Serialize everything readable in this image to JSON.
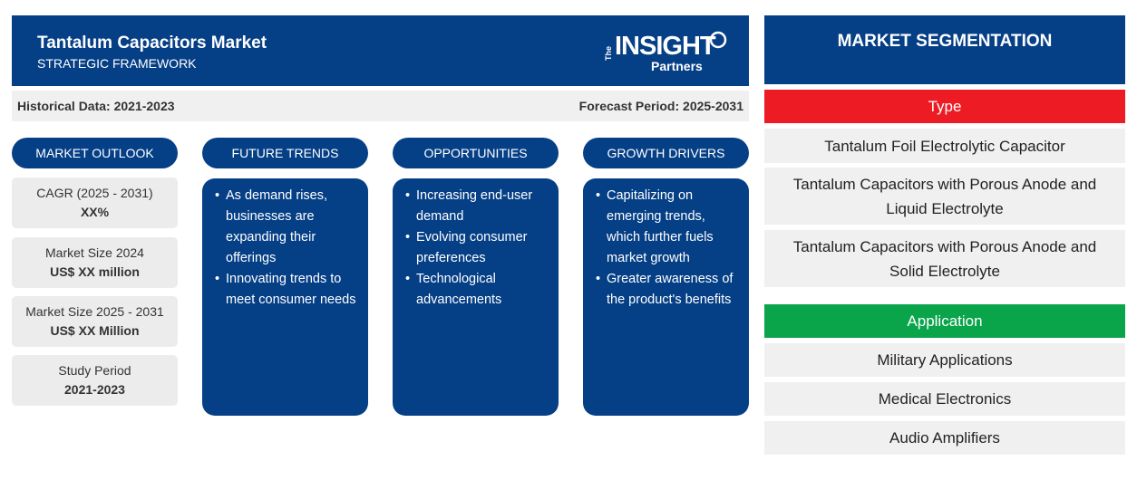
{
  "header": {
    "title": "Tantalum Capacitors Market",
    "subtitle": "STRATEGIC FRAMEWORK",
    "logo": {
      "the": "The",
      "insight": "INSIGHT",
      "partners": "Partners"
    }
  },
  "periods": {
    "historical": "Historical Data: 2021-2023",
    "forecast": "Forecast Period: 2025-2031"
  },
  "columns": {
    "market_outlook": "MARKET OUTLOOK",
    "future_trends": "FUTURE TRENDS",
    "opportunities": "OPPORTUNITIES",
    "growth_drivers": "GROWTH DRIVERS"
  },
  "outlook": [
    {
      "label": "CAGR (2025 - 2031)",
      "value": "XX%"
    },
    {
      "label": "Market Size 2024",
      "value": "US$ XX million"
    },
    {
      "label": "Market Size 2025 - 2031",
      "value": "US$ XX Million"
    },
    {
      "label": "Study Period",
      "value": "2021-2023"
    }
  ],
  "future_trends": [
    "As demand rises, businesses are expanding their offerings",
    "Innovating trends to meet consumer needs"
  ],
  "opportunities": [
    "Increasing end-user demand",
    "Evolving consumer preferences",
    "Technological advancements"
  ],
  "growth_drivers": [
    "Capitalizing on emerging trends, which further fuels market growth",
    "Greater awareness of the product's benefits"
  ],
  "segmentation": {
    "title": "MARKET SEGMENTATION",
    "type": {
      "label": "Type",
      "color": "#ed1c24",
      "items": [
        "Tantalum Foil Electrolytic Capacitor",
        "Tantalum Capacitors with Porous Anode and Liquid Electrolyte",
        "Tantalum Capacitors with Porous Anode and Solid Electrolyte"
      ]
    },
    "application": {
      "label": "Application",
      "color": "#0aa54b",
      "items": [
        "Military Applications",
        "Medical Electronics",
        "Audio Amplifiers"
      ]
    }
  },
  "colors": {
    "brand_blue": "#053f86",
    "panel_gray": "#f0f0f0"
  }
}
